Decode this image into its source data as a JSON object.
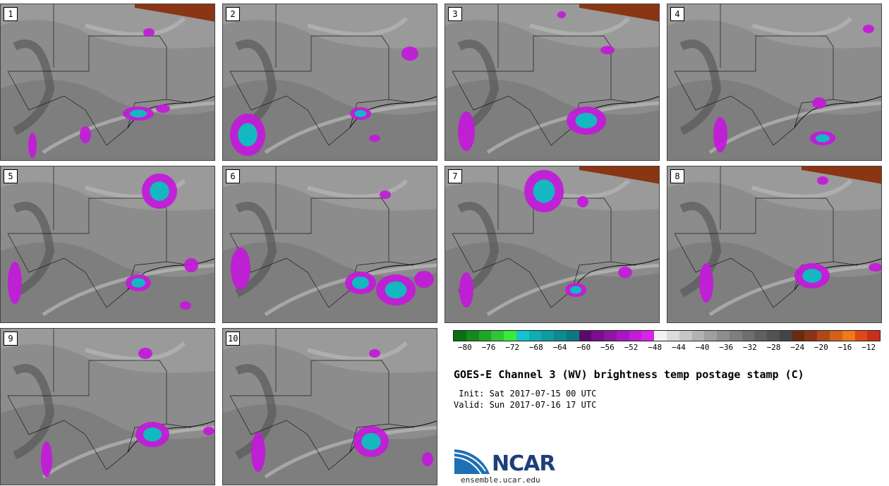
{
  "panels": [
    "1",
    "2",
    "3",
    "4",
    "5",
    "6",
    "7",
    "8",
    "9",
    "10"
  ],
  "title": "GOES-E Channel 3 (WV) brightness temp postage stamp (C)",
  "init_line": "Init: Sat 2017-07-15 00 UTC",
  "valid_line": "Valid: Sun 2017-07-16 17 UTC",
  "logo_text": "NCAR",
  "site": "ensemble.ucar.edu",
  "colorbar": {
    "tick_labels": [
      "−80",
      "−76",
      "−72",
      "−68",
      "−64",
      "−60",
      "−56",
      "−52",
      "−48",
      "−44",
      "−40",
      "−36",
      "−32",
      "−28",
      "−24",
      "−20",
      "−16",
      "−12"
    ],
    "colors": [
      "#0a6e12",
      "#138a1c",
      "#1ea628",
      "#2ec635",
      "#3be83c",
      "#13c4cc",
      "#10acb4",
      "#0e9ba1",
      "#0c8a8f",
      "#0a7a7e",
      "#5c0a6a",
      "#77108a",
      "#8e14a6",
      "#a818c2",
      "#c21cd8",
      "#db22ea",
      "#f2f2f2",
      "#dcdcdc",
      "#c6c6c6",
      "#b2b2b2",
      "#a0a0a0",
      "#8e8e8e",
      "#7e7e7e",
      "#6e6e6e",
      "#606060",
      "#525252",
      "#444444",
      "#6b2a10",
      "#8a3514",
      "#b04818",
      "#d4601a",
      "#ee7a1a",
      "#e0481a",
      "#c8301a"
    ]
  }
}
